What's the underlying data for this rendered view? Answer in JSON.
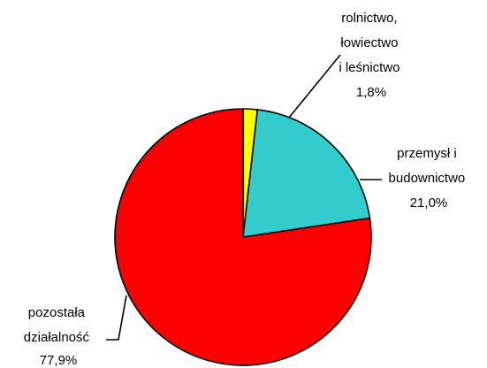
{
  "chart_data": {
    "type": "pie",
    "title": "",
    "slices": [
      {
        "label_lines": [
          "rolnictwo,",
          "łowiectwo",
          "i leśnictwo"
        ],
        "value_label": "1,8%",
        "value": 1.8,
        "color": "#ffff00"
      },
      {
        "label_lines": [
          "przemysł i",
          "budownictwo"
        ],
        "value_label": "21,0%",
        "value": 21.0,
        "color": "#33cccc"
      },
      {
        "label_lines": [
          "pozostała",
          "działalność"
        ],
        "value_label": "77,9%",
        "value": 77.9,
        "color": "#ff0000"
      }
    ],
    "start_angle_deg": 0,
    "direction": "clockwise",
    "legend": "none"
  }
}
